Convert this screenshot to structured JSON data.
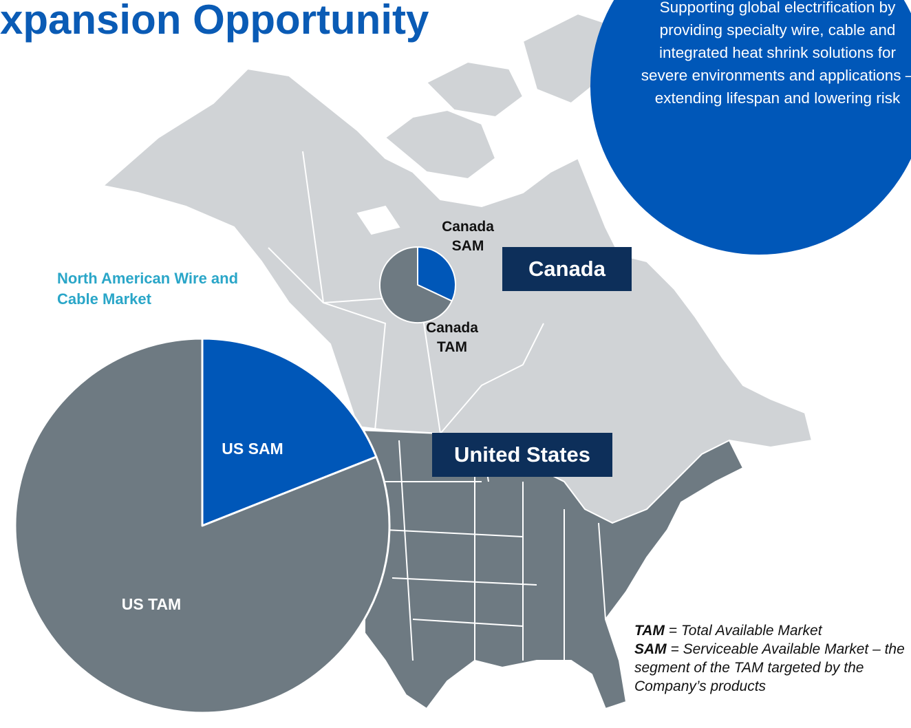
{
  "title": "Expansion Opportunity",
  "callout": "Supporting global electrification by providing specialty wire, cable and integrated heat shrink solutions for severe environments and applications – extending lifespan and lowering risk",
  "regions": [
    "Canada",
    "United States"
  ],
  "chart_data": [
    {
      "type": "pie",
      "title": "North American Wire and Cable Market",
      "categories": [
        "US SAM",
        "US TAM"
      ],
      "values": [
        19,
        81
      ],
      "colors": [
        "#0057b8",
        "#6e7a82"
      ]
    },
    {
      "type": "pie",
      "categories": [
        "Canada SAM",
        "Canada TAM"
      ],
      "values": [
        32,
        68
      ],
      "colors": [
        "#0057b8",
        "#6e7a82"
      ]
    }
  ],
  "notes": [
    {
      "term": "TAM",
      "definition": "= Total Available Market"
    },
    {
      "term": "SAM",
      "definition": "= Serviceable Available Market – the segment of the TAM targeted by the Company’s products"
    }
  ]
}
